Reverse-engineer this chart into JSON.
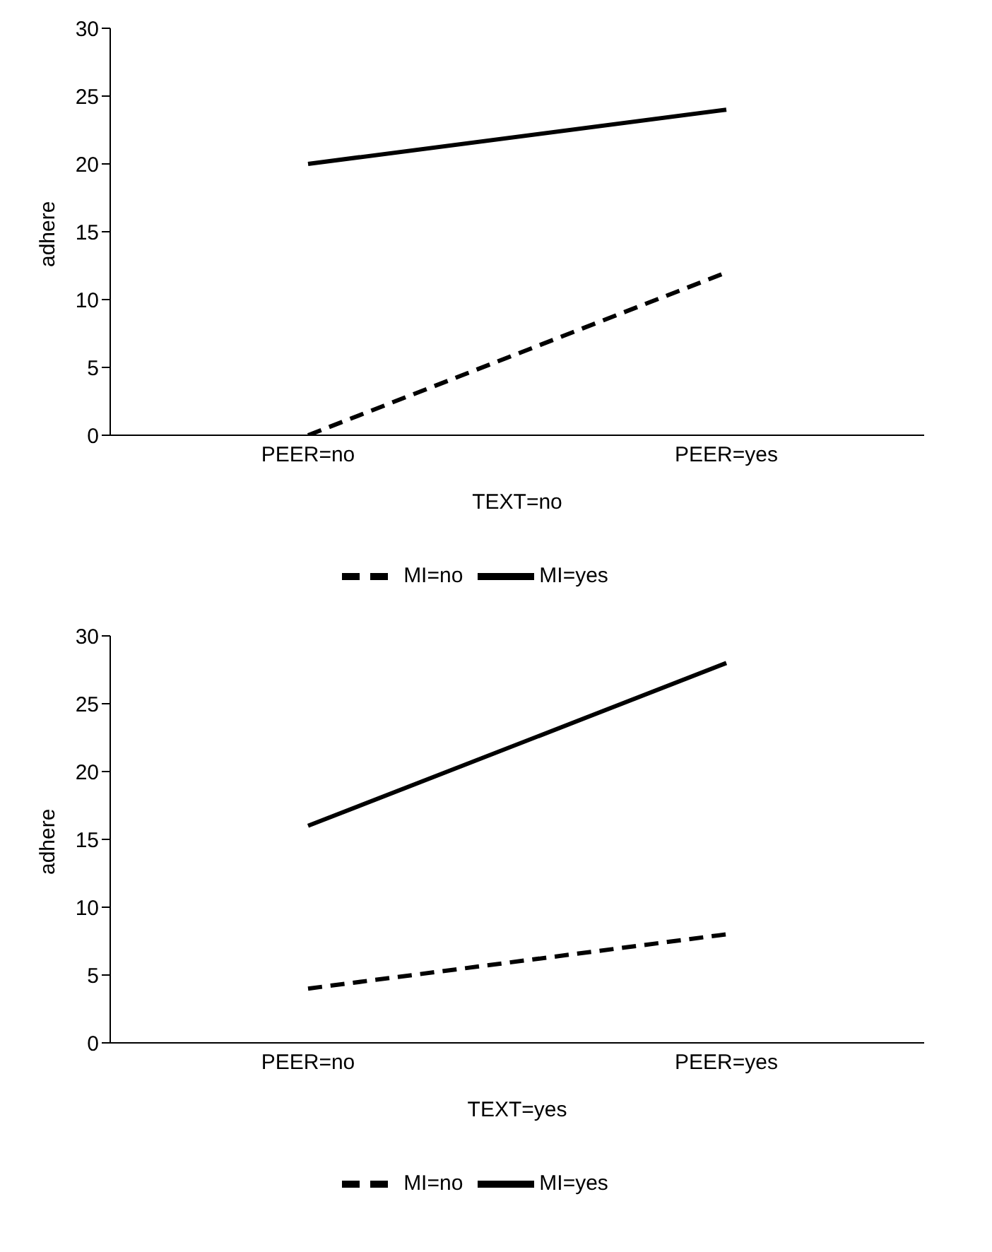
{
  "chart_data": [
    {
      "type": "line",
      "xlabel": "TEXT=no",
      "ylabel": "adhere",
      "categories": [
        "PEER=no",
        "PEER=yes"
      ],
      "ylim": [
        0,
        30
      ],
      "yticks": [
        0,
        5,
        10,
        15,
        20,
        25,
        30
      ],
      "grid": false,
      "legend": "bottom",
      "marker": "none",
      "series": [
        {
          "name": "MI=no",
          "color": "#000000",
          "line_style": "dashed",
          "values": [
            0,
            12
          ]
        },
        {
          "name": "MI=yes",
          "color": "#000000",
          "line_style": "solid",
          "values": [
            20,
            24
          ]
        }
      ]
    },
    {
      "type": "line",
      "xlabel": "TEXT=yes",
      "ylabel": "adhere",
      "categories": [
        "PEER=no",
        "PEER=yes"
      ],
      "ylim": [
        0,
        30
      ],
      "yticks": [
        0,
        5,
        10,
        15,
        20,
        25,
        30
      ],
      "grid": false,
      "legend": "bottom",
      "marker": "none",
      "series": [
        {
          "name": "MI=no",
          "color": "#000000",
          "line_style": "dashed",
          "values": [
            4,
            8
          ]
        },
        {
          "name": "MI=yes",
          "color": "#000000",
          "line_style": "solid",
          "values": [
            16,
            28
          ]
        }
      ]
    }
  ]
}
